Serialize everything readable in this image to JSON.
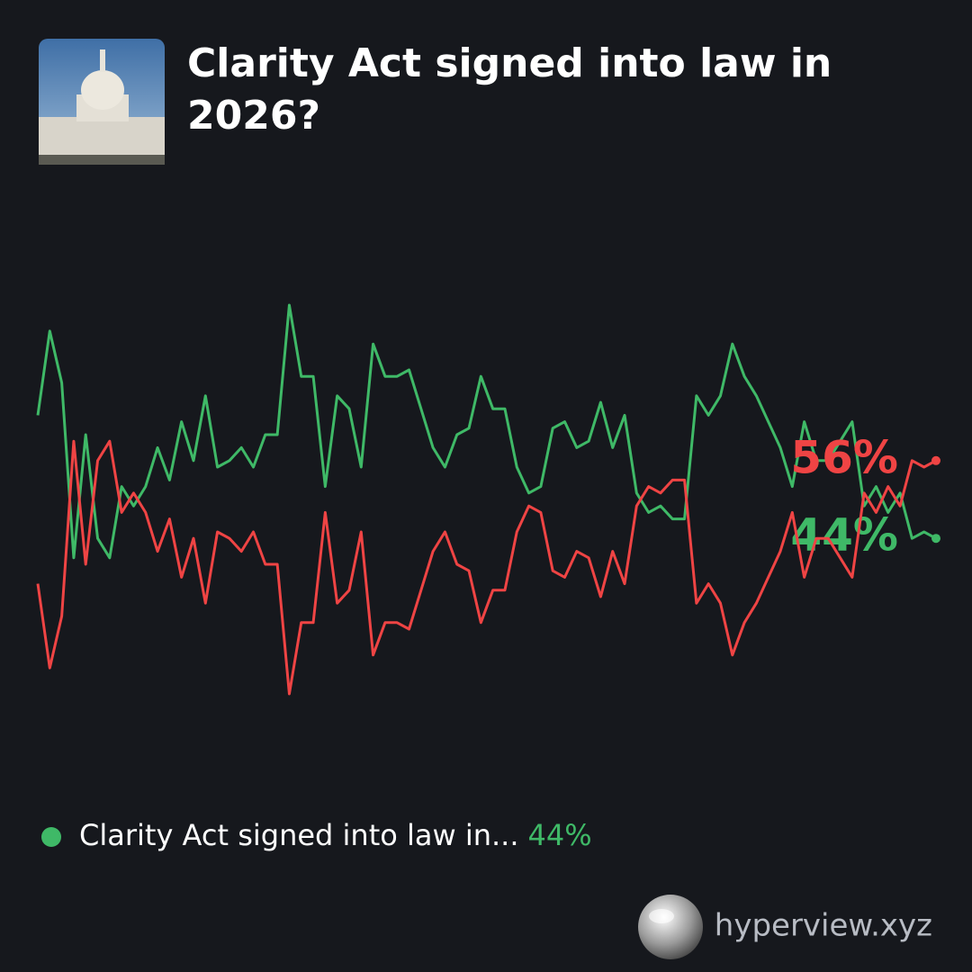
{
  "title": "Clarity Act signed into law in 2026?",
  "footer": "hyperview.xyz",
  "chart_data": {
    "type": "line",
    "ylim": [
      15,
      85
    ],
    "series": [
      {
        "name": "Clarity Act signed into law in...",
        "color": "#3fb967",
        "values": [
          63,
          76,
          68,
          41,
          60,
          44,
          41,
          52,
          49,
          52,
          58,
          53,
          62,
          56,
          66,
          55,
          56,
          58,
          55,
          60,
          60,
          80,
          69,
          69,
          52,
          66,
          64,
          55,
          74,
          69,
          69,
          70,
          64,
          58,
          55,
          60,
          61,
          69,
          64,
          64,
          55,
          51,
          52,
          61,
          62,
          58,
          59,
          65,
          58,
          63,
          51,
          48,
          49,
          47,
          47,
          66,
          63,
          66,
          74,
          69,
          66,
          62,
          58,
          52,
          62,
          56,
          56,
          59,
          62,
          49,
          52,
          48,
          51,
          44,
          45,
          44
        ],
        "value_labels": [
          null,
          null,
          null,
          null,
          null,
          null,
          null,
          null,
          null,
          null,
          null,
          null,
          null,
          null,
          null,
          null,
          null,
          null,
          null,
          null,
          null,
          null,
          null,
          null,
          null,
          null,
          null,
          null,
          null,
          null,
          null,
          null,
          null,
          null,
          null,
          null,
          null,
          null,
          null,
          null,
          null,
          null,
          null,
          null,
          null,
          null,
          null,
          null,
          null,
          null,
          null,
          null,
          null,
          null,
          null,
          null,
          null,
          null,
          null,
          null,
          null,
          null,
          null,
          null,
          null,
          null,
          null,
          null,
          null,
          null,
          null,
          null,
          null,
          null,
          null,
          "44%"
        ]
      },
      {
        "color": "#ef4444",
        "values": [
          37,
          24,
          32,
          59,
          40,
          56,
          59,
          48,
          51,
          48,
          42,
          47,
          38,
          44,
          34,
          45,
          44,
          42,
          45,
          40,
          40,
          20,
          31,
          31,
          48,
          34,
          36,
          45,
          26,
          31,
          31,
          30,
          36,
          42,
          45,
          40,
          39,
          31,
          36,
          36,
          45,
          49,
          48,
          39,
          38,
          42,
          41,
          35,
          42,
          37,
          49,
          52,
          51,
          53,
          53,
          34,
          37,
          34,
          26,
          31,
          34,
          38,
          42,
          48,
          38,
          44,
          44,
          41,
          38,
          51,
          48,
          52,
          49,
          56,
          55,
          56
        ],
        "value_labels": [
          null,
          null,
          null,
          null,
          null,
          null,
          null,
          null,
          null,
          null,
          null,
          null,
          null,
          null,
          null,
          null,
          null,
          null,
          null,
          null,
          null,
          null,
          null,
          null,
          null,
          null,
          null,
          null,
          null,
          null,
          null,
          null,
          null,
          null,
          null,
          null,
          null,
          null,
          null,
          null,
          null,
          null,
          null,
          null,
          null,
          null,
          null,
          null,
          null,
          null,
          null,
          null,
          null,
          null,
          null,
          null,
          null,
          null,
          null,
          null,
          null,
          null,
          null,
          null,
          null,
          null,
          null,
          null,
          null,
          null,
          null,
          null,
          null,
          null,
          null,
          "56%"
        ]
      }
    ]
  }
}
